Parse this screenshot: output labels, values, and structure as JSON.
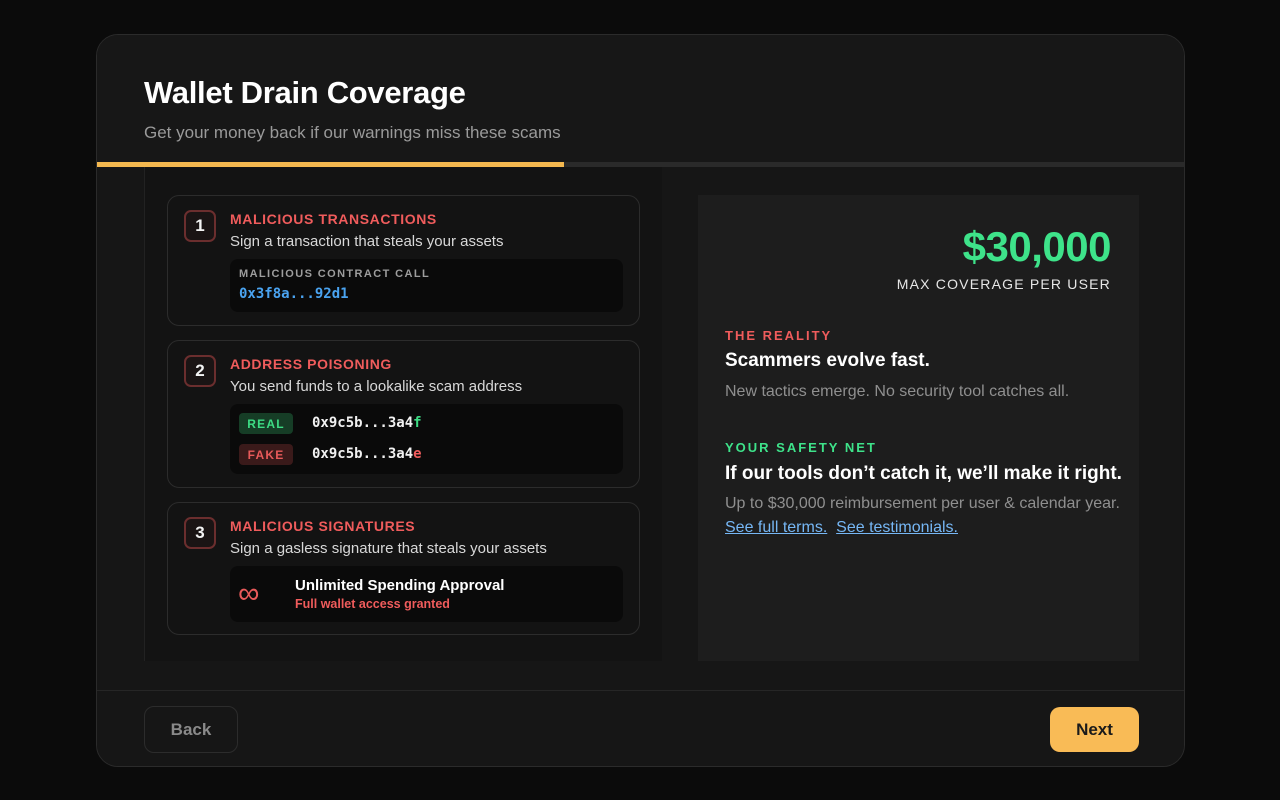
{
  "header": {
    "title": "Wallet Drain Coverage",
    "subtitle": "Get your money back if our warnings miss these scams",
    "progress_percent": 43
  },
  "cards": [
    {
      "number": "1",
      "title": "MALICIOUS TRANSACTIONS",
      "description": "Sign a transaction that steals your assets",
      "contract_label": "MALICIOUS CONTRACT CALL",
      "contract_address": "0x3f8a...92d1"
    },
    {
      "number": "2",
      "title": "ADDRESS POISONING",
      "description": "You send funds to a lookalike scam address",
      "real_badge": "REAL",
      "real_address_prefix": "0x9c5b...3a4",
      "real_address_suffix": "f",
      "fake_badge": "FAKE",
      "fake_address_prefix": "0x9c5b...3a4",
      "fake_address_suffix": "e"
    },
    {
      "number": "3",
      "title": "MALICIOUS SIGNATURES",
      "description": "Sign a gasless signature that steals your assets",
      "symbol": "∞",
      "approval_title": "Unlimited Spending Approval",
      "approval_subtitle": "Full wallet access granted"
    }
  ],
  "coverage": {
    "amount": "$30,000",
    "label": "MAX COVERAGE PER USER",
    "reality_label": "THE REALITY",
    "reality_head": "Scammers evolve fast.",
    "reality_text": "New tactics emerge. No security tool catches all.",
    "net_label": "YOUR SAFETY NET",
    "net_head": "If our tools don’t catch it, we’ll make it right.",
    "net_text": "Up to $30,000 reimbursement per user & calendar year.",
    "terms_link": "See full terms.",
    "testimonials_link": "See testimonials."
  },
  "footer": {
    "back_label": "Back",
    "next_label": "Next"
  },
  "colors": {
    "accent": "#f9bb56",
    "danger": "#f05c5c",
    "success": "#3ee38a",
    "link": "#76b7f5"
  }
}
